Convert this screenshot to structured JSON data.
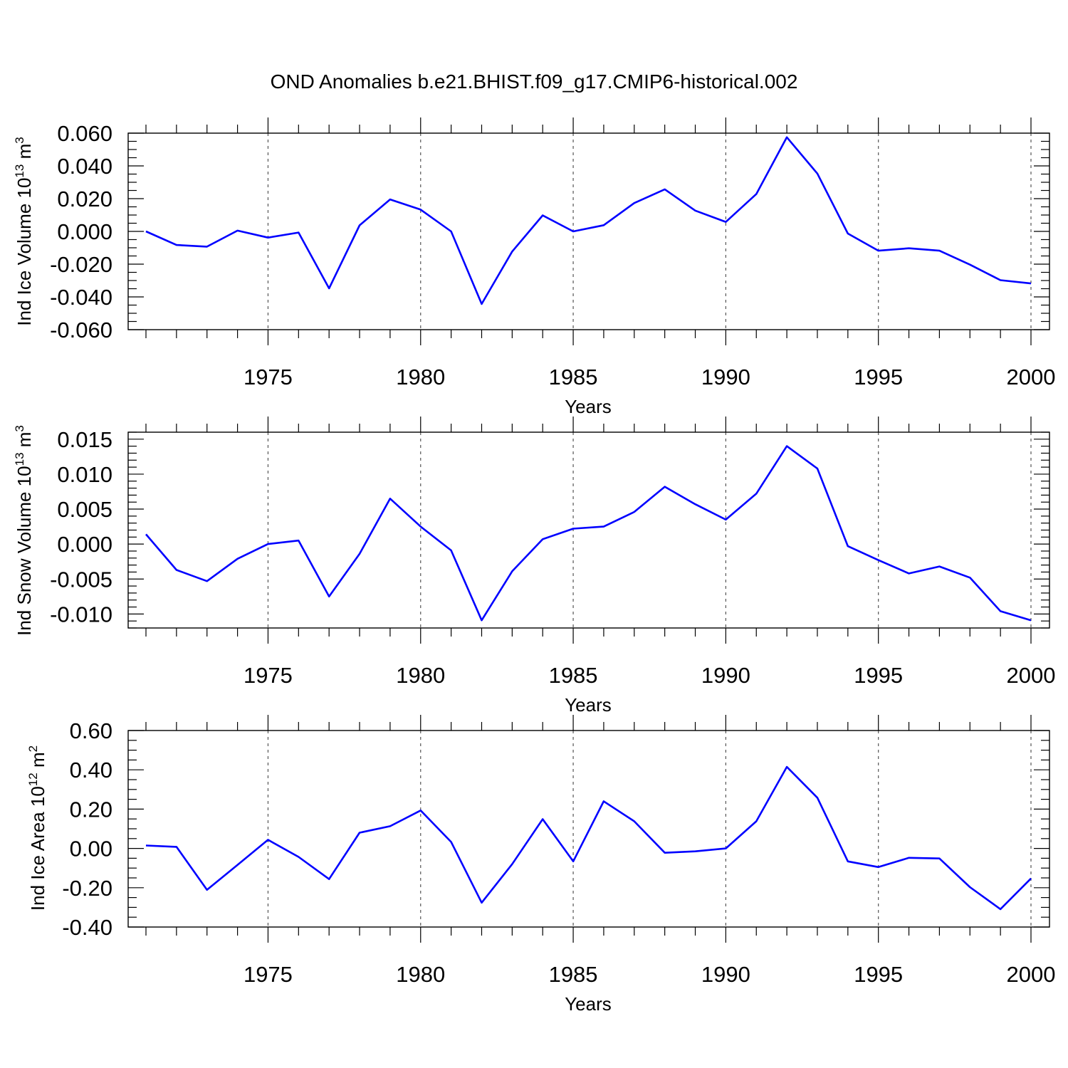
{
  "figure": {
    "title": "OND Anomalies b.e21.BHIST.f09_g17.CMIP6-historical.002"
  },
  "chart_data": [
    {
      "type": "line",
      "title": "",
      "xlabel": "Years",
      "ylabel": {
        "text": "Ind Ice Volume 10",
        "sup": "13",
        "unit": " m",
        "unit_sup": "3"
      },
      "xlim": [
        1971,
        2000
      ],
      "ylim": [
        -0.06,
        0.06
      ],
      "yticks": [
        -0.06,
        -0.04,
        -0.02,
        0.0,
        0.02,
        0.04,
        0.06
      ],
      "ytick_labels": [
        "-0.060",
        "-0.040",
        "-0.020",
        "0.000",
        "0.020",
        "0.040",
        "0.060"
      ],
      "yminor_step": 0.005,
      "xticks": [
        1975,
        1980,
        1985,
        1990,
        1995,
        2000
      ],
      "xtick_labels": [
        "1975",
        "1980",
        "1985",
        "1990",
        "1995",
        "2000"
      ],
      "grid": "vertical dashed at major x ticks",
      "x": [
        1971,
        1972,
        1973,
        1974,
        1975,
        1976,
        1977,
        1978,
        1979,
        1980,
        1981,
        1982,
        1983,
        1984,
        1985,
        1986,
        1987,
        1988,
        1989,
        1990,
        1991,
        1992,
        1993,
        1994,
        1995,
        1996,
        1997,
        1998,
        1999,
        2000
      ],
      "series": [
        {
          "color": "#0000ff",
          "values": [
            0.0,
            -0.0083,
            -0.0093,
            0.0005,
            -0.0038,
            -0.0007,
            -0.0348,
            0.0037,
            0.0195,
            0.0133,
            0.0,
            -0.0443,
            -0.0123,
            0.0098,
            0.0,
            0.0038,
            0.0173,
            0.0257,
            0.0127,
            0.0058,
            0.0228,
            0.0575,
            0.0353,
            -0.0013,
            -0.0118,
            -0.0103,
            -0.0118,
            -0.0203,
            -0.0298,
            -0.0318
          ]
        }
      ]
    },
    {
      "type": "line",
      "title": "",
      "xlabel": "Years",
      "ylabel": {
        "text": "Ind Snow Volume 10",
        "sup": "13",
        "unit": " m",
        "unit_sup": "3"
      },
      "xlim": [
        1971,
        2000
      ],
      "ylim": [
        -0.012,
        0.016
      ],
      "yticks": [
        -0.01,
        -0.005,
        0.0,
        0.005,
        0.01,
        0.015
      ],
      "ytick_labels": [
        "-0.010",
        "-0.005",
        "0.000",
        "0.005",
        "0.010",
        "0.015"
      ],
      "yminor_step": 0.001,
      "xticks": [
        1975,
        1980,
        1985,
        1990,
        1995,
        2000
      ],
      "xtick_labels": [
        "1975",
        "1980",
        "1985",
        "1990",
        "1995",
        "2000"
      ],
      "grid": "vertical dashed at major x ticks",
      "x": [
        1971,
        1972,
        1973,
        1974,
        1975,
        1976,
        1977,
        1978,
        1979,
        1980,
        1981,
        1982,
        1983,
        1984,
        1985,
        1986,
        1987,
        1988,
        1989,
        1990,
        1991,
        1992,
        1993,
        1994,
        1995,
        1996,
        1997,
        1998,
        1999,
        2000
      ],
      "series": [
        {
          "color": "#0000ff",
          "values": [
            0.0014,
            -0.0037,
            -0.0053,
            -0.0021,
            0.0,
            0.0005,
            -0.0075,
            -0.0014,
            0.0065,
            0.0025,
            -0.0009,
            -0.0109,
            -0.0039,
            0.0007,
            0.0022,
            0.0025,
            0.0046,
            0.0082,
            0.0057,
            0.0035,
            0.0072,
            0.014,
            0.0108,
            -0.0003,
            -0.0023,
            -0.0042,
            -0.0032,
            -0.0048,
            -0.0096,
            -0.0109
          ]
        }
      ]
    },
    {
      "type": "line",
      "title": "",
      "xlabel": "Years",
      "ylabel": {
        "text": "Ind Ice Area 10",
        "sup": "12",
        "unit": " m",
        "unit_sup": "2"
      },
      "xlim": [
        1971,
        2000
      ],
      "ylim": [
        -0.4,
        0.6
      ],
      "yticks": [
        -0.4,
        -0.2,
        0.0,
        0.2,
        0.4,
        0.6
      ],
      "ytick_labels": [
        "-0.40",
        "-0.20",
        "0.00",
        "0.20",
        "0.40",
        "0.60"
      ],
      "yminor_step": 0.05,
      "xticks": [
        1975,
        1980,
        1985,
        1990,
        1995,
        2000
      ],
      "xtick_labels": [
        "1975",
        "1980",
        "1985",
        "1990",
        "1995",
        "2000"
      ],
      "grid": "vertical dashed at major x ticks",
      "x": [
        1971,
        1972,
        1973,
        1974,
        1975,
        1976,
        1977,
        1978,
        1979,
        1980,
        1981,
        1982,
        1983,
        1984,
        1985,
        1986,
        1987,
        1988,
        1989,
        1990,
        1991,
        1992,
        1993,
        1994,
        1995,
        1996,
        1997,
        1998,
        1999,
        2000
      ],
      "series": [
        {
          "color": "#0000ff",
          "values": [
            0.015,
            0.008,
            -0.211,
            -0.084,
            0.044,
            -0.043,
            -0.156,
            0.08,
            0.113,
            0.193,
            0.033,
            -0.276,
            -0.08,
            0.149,
            -0.066,
            0.24,
            0.138,
            -0.022,
            -0.015,
            0.0,
            0.138,
            0.415,
            0.258,
            -0.066,
            -0.095,
            -0.048,
            -0.051,
            -0.197,
            -0.309,
            -0.153
          ]
        }
      ]
    }
  ]
}
